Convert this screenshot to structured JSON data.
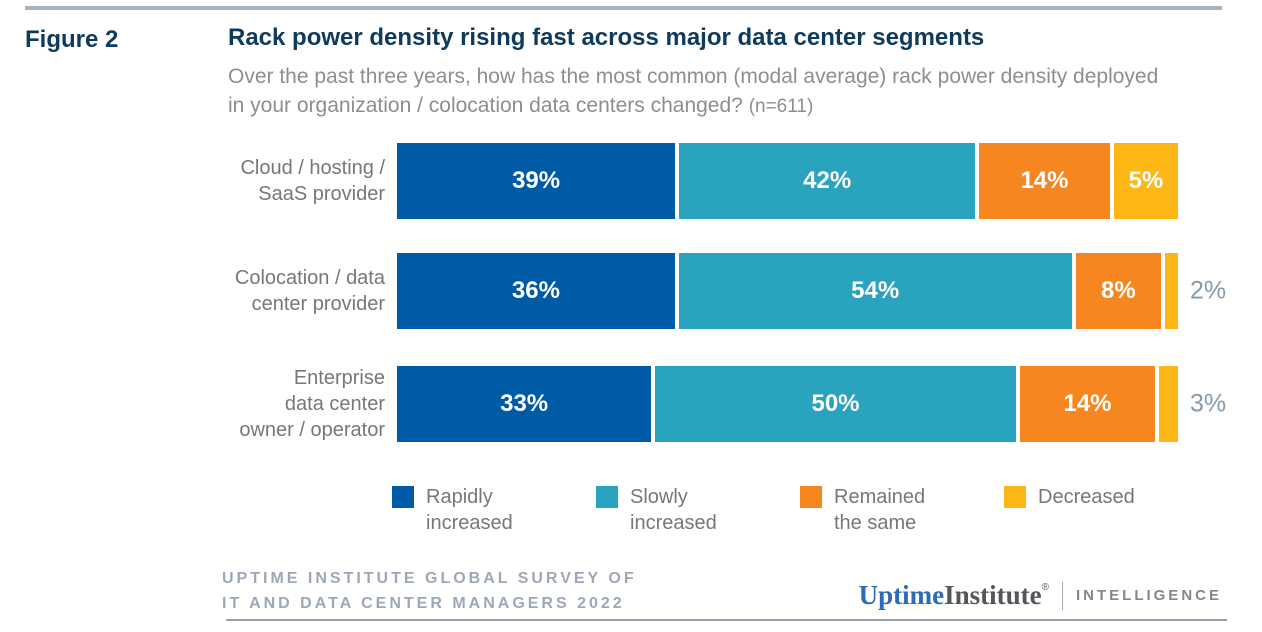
{
  "figure_label": "Figure 2",
  "title": "Rack power density rising fast across major data center segments",
  "subtitle_line1": "Over the past three years, how has the most common (modal average) rack power density deployed",
  "subtitle_line2": "in your organization / colocation data centers changed?",
  "sample_size": "(n=611)",
  "chart_data": {
    "type": "bar",
    "orientation": "horizontal-stacked",
    "title": "Rack power density rising fast across major data center segments",
    "xlim": [
      0,
      100
    ],
    "value_suffix": "%",
    "grid": false,
    "legend_position": "bottom",
    "label_inside_threshold": 5,
    "categories": [
      "Cloud / hosting / SaaS provider",
      "Colocation / data center provider",
      "Enterprise data center owner / operator"
    ],
    "category_label_lines": [
      [
        "Cloud / hosting /",
        "SaaS provider"
      ],
      [
        "Colocation / data",
        "center provider"
      ],
      [
        "Enterprise",
        "data center",
        "owner / operator"
      ]
    ],
    "series": [
      {
        "name": "Rapidly increased",
        "color": "#005ba7",
        "values": [
          39,
          36,
          33
        ]
      },
      {
        "name": "Slowly increased",
        "color": "#2aa3be",
        "values": [
          42,
          54,
          50
        ]
      },
      {
        "name": "Remained the same",
        "color": "#f6861f",
        "values": [
          14,
          8,
          14
        ]
      },
      {
        "name": "Decreased",
        "color": "#fdb614",
        "values": [
          5,
          2,
          3
        ]
      }
    ]
  },
  "footer": {
    "line1": "UPTIME INSTITUTE GLOBAL SURVEY OF",
    "line2": "IT AND DATA CENTER MANAGERS 2022"
  },
  "brand": {
    "word1": "Uptime",
    "word2": "Institute",
    "registered": "®",
    "division": "INTELLIGENCE"
  },
  "colors": {
    "title_navy": "#0e3a5c",
    "subtitle_gray": "#8d8e90",
    "label_gray": "#76777a",
    "outside_value_gray": "#8799ae",
    "footer_gray": "#9da8b6",
    "brand_blue": "#2d6cb5"
  }
}
